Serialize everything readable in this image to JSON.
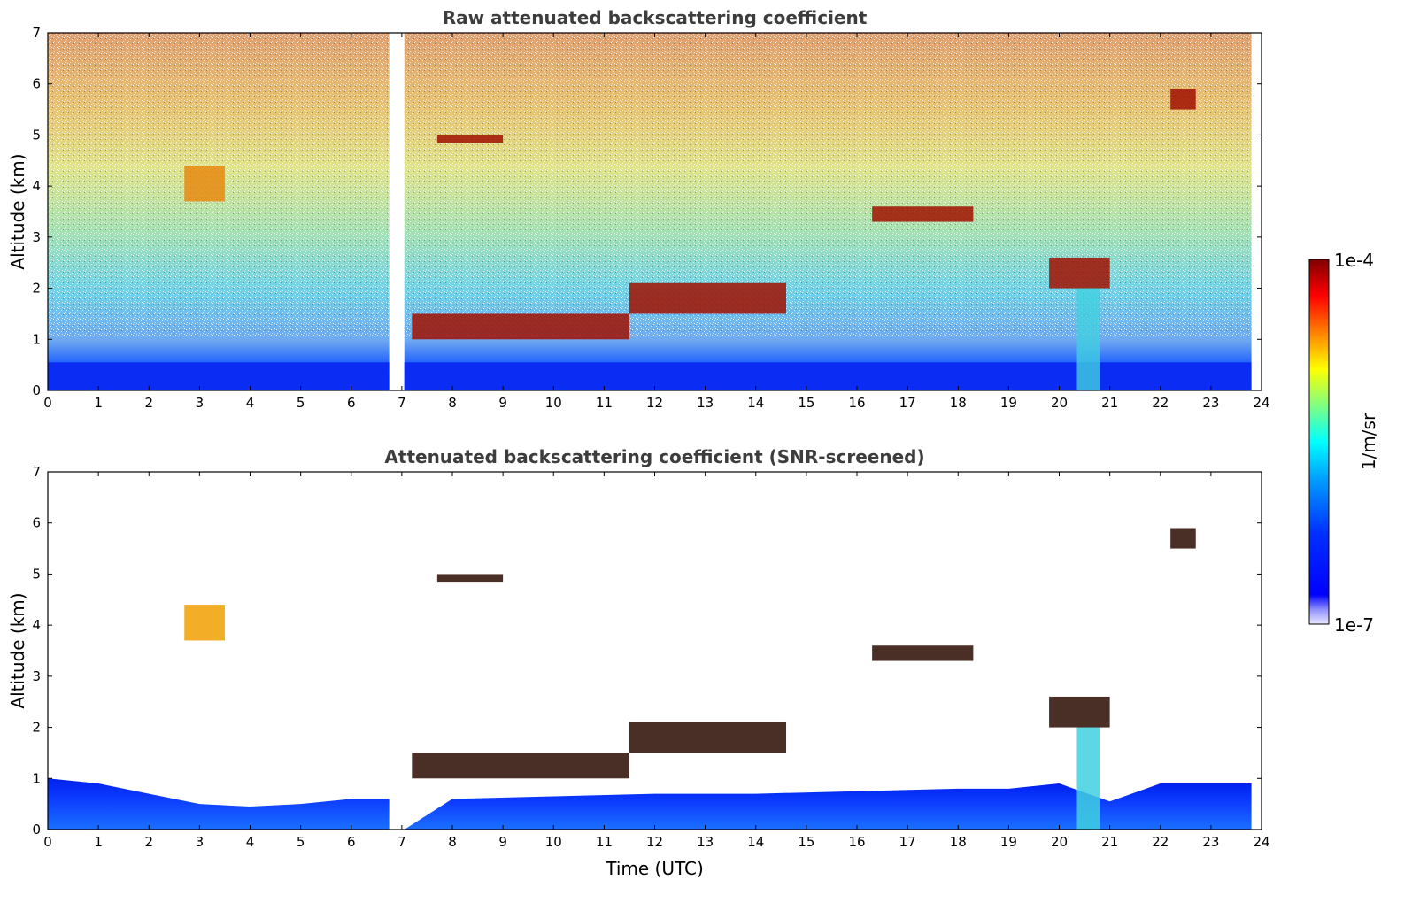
{
  "chart_data": [
    {
      "type": "heatmap",
      "title": "Raw attenuated backscattering coefficient",
      "xlabel": "",
      "ylabel": "Altitude (km)",
      "xlim": [
        0,
        24
      ],
      "ylim": [
        0,
        7
      ],
      "x_ticks": [
        "0",
        "1",
        "2",
        "3",
        "4",
        "5",
        "6",
        "7",
        "8",
        "9",
        "10",
        "11",
        "12",
        "13",
        "14",
        "15",
        "16",
        "17",
        "18",
        "19",
        "20",
        "21",
        "22",
        "23",
        "24"
      ],
      "y_ticks": [
        "0",
        "1",
        "2",
        "3",
        "4",
        "5",
        "6",
        "7"
      ],
      "data_gap": [
        6.75,
        7.05
      ],
      "data_end": 23.8,
      "cloud_layers": [
        {
          "x": [
            7.2,
            11.5
          ],
          "y": [
            1.0,
            1.5
          ],
          "level": "high"
        },
        {
          "x": [
            11.5,
            14.6
          ],
          "y": [
            1.5,
            2.1
          ],
          "level": "high"
        },
        {
          "x": [
            7.7,
            9.0
          ],
          "y": [
            4.85,
            5.0
          ],
          "level": "high"
        },
        {
          "x": [
            16.3,
            18.3
          ],
          "y": [
            3.3,
            3.6
          ],
          "level": "high"
        },
        {
          "x": [
            19.8,
            21.0
          ],
          "y": [
            2.0,
            2.6
          ],
          "level": "high"
        },
        {
          "x": [
            22.2,
            22.7
          ],
          "y": [
            5.5,
            5.9
          ],
          "level": "high"
        },
        {
          "x": [
            2.7,
            3.5
          ],
          "y": [
            3.7,
            4.4
          ],
          "level": "medium"
        }
      ]
    },
    {
      "type": "heatmap",
      "title": "Attenuated backscattering coefficient (SNR-screened)",
      "xlabel": "Time (UTC)",
      "ylabel": "Altitude (km)",
      "xlim": [
        0,
        24
      ],
      "ylim": [
        0,
        7
      ],
      "x_ticks": [
        "0",
        "1",
        "2",
        "3",
        "4",
        "5",
        "6",
        "7",
        "8",
        "9",
        "10",
        "11",
        "12",
        "13",
        "14",
        "15",
        "16",
        "17",
        "18",
        "19",
        "20",
        "21",
        "22",
        "23",
        "24"
      ],
      "y_ticks": [
        "0",
        "1",
        "2",
        "3",
        "4",
        "5",
        "6",
        "7"
      ],
      "data_gap": [
        6.75,
        7.05
      ],
      "data_end": 23.8,
      "boundary_layer_top_km": [
        [
          0,
          1.0
        ],
        [
          1,
          0.9
        ],
        [
          2,
          0.7
        ],
        [
          3,
          0.5
        ],
        [
          4,
          0.45
        ],
        [
          5,
          0.5
        ],
        [
          6,
          0.6
        ],
        [
          7,
          0.6
        ],
        [
          8,
          0.6
        ],
        [
          10,
          0.65
        ],
        [
          12,
          0.7
        ],
        [
          14,
          0.7
        ],
        [
          16,
          0.75
        ],
        [
          18,
          0.8
        ],
        [
          19,
          0.8
        ],
        [
          20,
          0.9
        ],
        [
          21,
          0.55
        ],
        [
          22,
          0.9
        ],
        [
          23.8,
          0.9
        ]
      ]
    }
  ],
  "colorbar": {
    "label": "1/m/sr",
    "max_label": "1e-4",
    "min_label": "1e-7",
    "colors": [
      "#800000",
      "#ff0000",
      "#ff8000",
      "#ffff00",
      "#80ff80",
      "#00ffff",
      "#0080ff",
      "#0000ff",
      "#0000c0",
      "#e8e8ff"
    ]
  }
}
